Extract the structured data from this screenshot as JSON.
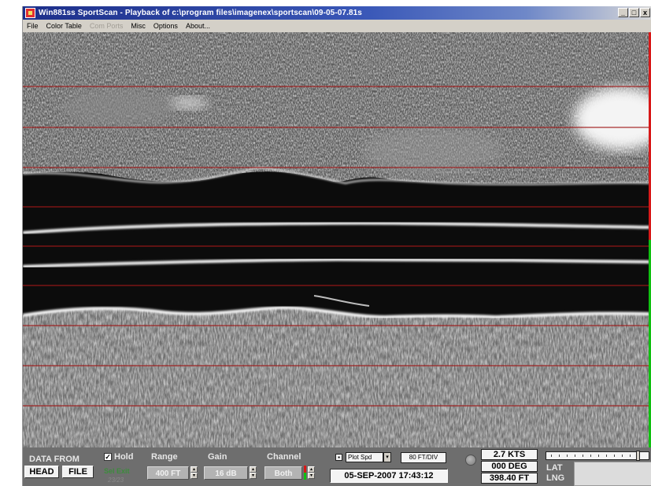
{
  "window": {
    "title": "Win881ss SportScan - Playback of c:\\program files\\imagenex\\sportscan\\09-05-07.81s",
    "controls": [
      "_",
      "□",
      "x"
    ]
  },
  "menu": [
    {
      "label": "File",
      "enabled": true
    },
    {
      "label": "Color Table",
      "enabled": true
    },
    {
      "label": "Com Ports",
      "enabled": false
    },
    {
      "label": "Misc",
      "enabled": true
    },
    {
      "label": "Options",
      "enabled": true
    },
    {
      "label": "About...",
      "enabled": true
    }
  ],
  "colors": {
    "range_line": "#a01818",
    "edge_top": "#d81818",
    "edge_bottom": "#10c010"
  },
  "panel": {
    "data_from_label": "DATA FROM",
    "head_button": "HEAD",
    "file_button": "FILE",
    "hold_label": "Hold",
    "hold_checked": true,
    "green_status": "Sel Exit",
    "dim_status": "23/23",
    "range_label": "Range",
    "range_value": "400 FT",
    "gain_label": "Gain",
    "gain_value": "16 dB",
    "channel_label": "Channel",
    "channel_value": "Both",
    "plot_select": "Plot Spd",
    "scale_value": "80 FT/DIV",
    "datetime": "05-SEP-2007  17:43:12",
    "speed": "2.7 KTS",
    "heading": "000 DEG",
    "distance": "398.40 FT",
    "lat_label": "LAT",
    "lng_label": "LNG",
    "slider_level": 0.92
  }
}
